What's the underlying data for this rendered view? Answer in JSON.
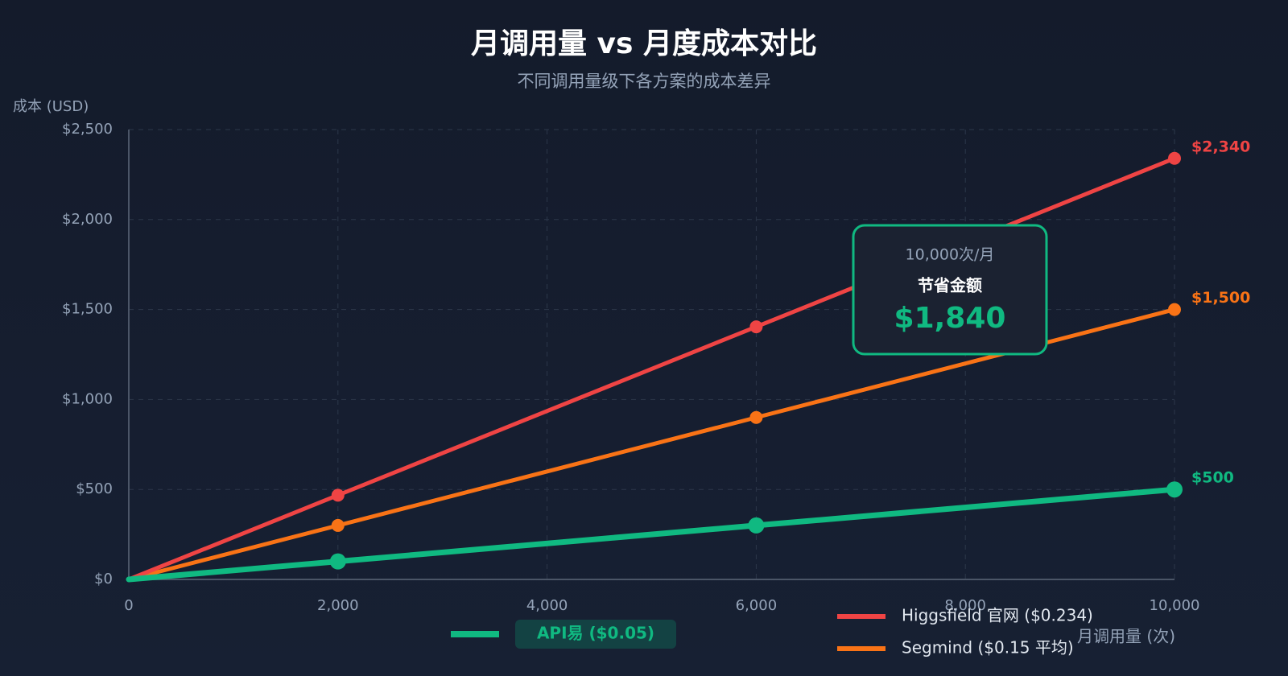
{
  "chart_data": {
    "type": "line",
    "title": "月调用量 vs 月度成本对比",
    "subtitle": "不同调用量级下各方案的成本差异",
    "y_label": "成本 (USD)",
    "x_label": "月调用量 (次)",
    "x": [
      0,
      2000,
      6000,
      10000
    ],
    "series": [
      {
        "name": "API易 ($0.05)",
        "color": "#10b981",
        "values": [
          0,
          100,
          300,
          500
        ],
        "value_labels": [
          null,
          null,
          null,
          "$500"
        ]
      },
      {
        "name": "Higgsfield 官网 ($0.234)",
        "color": "#ef4444",
        "values": [
          0,
          468,
          1404,
          2340
        ],
        "value_labels": [
          null,
          null,
          null,
          "$2,340"
        ]
      },
      {
        "name": "Segmind ($0.15 平均)",
        "color": "#f97316",
        "values": [
          0,
          300,
          900,
          1500
        ],
        "value_labels": [
          null,
          null,
          null,
          "$1,500"
        ]
      }
    ],
    "xlim": [
      0,
      10000
    ],
    "xticks": [
      0,
      {
        "value": 2000,
        "label": "2,000"
      },
      {
        "value": 4000,
        "label": "4,000"
      },
      {
        "value": 6000,
        "label": "6,000"
      },
      {
        "value": 8000,
        "label": "8,000"
      },
      {
        "value": 10000,
        "label": "10,000"
      }
    ],
    "ylim": [
      0,
      2500
    ],
    "yticks": [
      {
        "value": 0,
        "label": "$0"
      },
      {
        "value": 500,
        "label": "$500"
      },
      {
        "value": 1000,
        "label": "$1,000"
      },
      {
        "value": 1500,
        "label": "$1,500"
      },
      {
        "value": 2000,
        "label": "$2,000"
      },
      {
        "value": 2500,
        "label": "$2,500"
      }
    ],
    "grid": true,
    "annotation": {
      "header": "10,000次/月",
      "label": "节省金额",
      "value": "$1,840"
    }
  }
}
